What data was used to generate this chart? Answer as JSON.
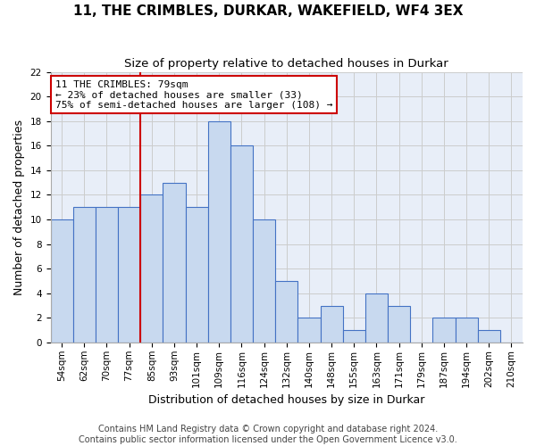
{
  "title": "11, THE CRIMBLES, DURKAR, WAKEFIELD, WF4 3EX",
  "subtitle": "Size of property relative to detached houses in Durkar",
  "xlabel": "Distribution of detached houses by size in Durkar",
  "ylabel": "Number of detached properties",
  "bar_labels": [
    "54sqm",
    "62sqm",
    "70sqm",
    "77sqm",
    "85sqm",
    "93sqm",
    "101sqm",
    "109sqm",
    "116sqm",
    "124sqm",
    "132sqm",
    "140sqm",
    "148sqm",
    "155sqm",
    "163sqm",
    "171sqm",
    "179sqm",
    "187sqm",
    "194sqm",
    "202sqm",
    "210sqm"
  ],
  "bar_heights": [
    10,
    11,
    11,
    11,
    12,
    13,
    11,
    18,
    16,
    10,
    5,
    2,
    3,
    1,
    4,
    3,
    0,
    2,
    2,
    1,
    0
  ],
  "bar_color": "#c8d9ef",
  "bar_edge_color": "#4472c4",
  "annotation_title": "11 THE CRIMBLES: 79sqm",
  "annotation_line1": "← 23% of detached houses are smaller (33)",
  "annotation_line2": "75% of semi-detached houses are larger (108) →",
  "annotation_box_color": "#ffffff",
  "annotation_box_edge": "#cc0000",
  "vline_color": "#cc0000",
  "vline_x": 3.5,
  "ylim": [
    0,
    22
  ],
  "yticks": [
    0,
    2,
    4,
    6,
    8,
    10,
    12,
    14,
    16,
    18,
    20,
    22
  ],
  "grid_color": "#cccccc",
  "background_color": "#e8eef8",
  "footer_line1": "Contains HM Land Registry data © Crown copyright and database right 2024.",
  "footer_line2": "Contains public sector information licensed under the Open Government Licence v3.0.",
  "title_fontsize": 11,
  "subtitle_fontsize": 9.5,
  "axis_label_fontsize": 9,
  "tick_fontsize": 7.5,
  "annotation_fontsize": 8,
  "footer_fontsize": 7
}
